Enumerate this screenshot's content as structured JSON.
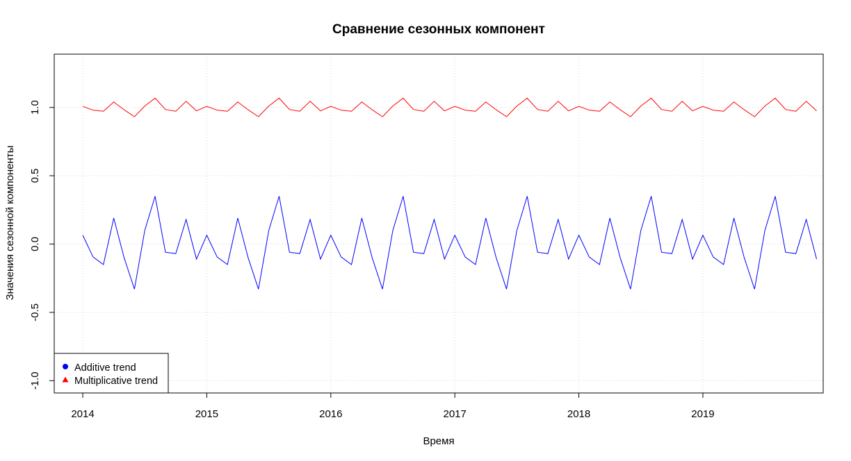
{
  "chart_data": {
    "type": "line",
    "title": "Сравнение сезонных компонент",
    "xlabel": "Время",
    "ylabel": "Значения сезонной компоненты",
    "xlim": [
      2013.77,
      2019.97
    ],
    "ylim": [
      -1.09,
      1.39
    ],
    "x_ticks": [
      2014,
      2015,
      2016,
      2017,
      2018,
      2019
    ],
    "y_ticks": [
      -1.0,
      -0.5,
      0.0,
      0.5,
      1.0
    ],
    "y_tick_labels": [
      "-1.0",
      "-0.5",
      "0.0",
      "0.5",
      "1.0"
    ],
    "grid": true,
    "legend_position": "bottom-left",
    "start": 2014,
    "frequency": 12,
    "series": [
      {
        "name": "Additive trend",
        "color": "#0000ff",
        "marker": "circle",
        "season_values": [
          0.065,
          -0.095,
          -0.15,
          0.19,
          -0.1,
          -0.33,
          0.1,
          0.35,
          -0.06,
          -0.07,
          0.18,
          -0.11
        ],
        "periods": 6
      },
      {
        "name": "Multiplicative trend",
        "color": "#ff0000",
        "marker": "triangle",
        "season_values": [
          1.008,
          0.98,
          0.972,
          1.04,
          0.983,
          0.932,
          1.01,
          1.068,
          0.985,
          0.972,
          1.045,
          0.975
        ],
        "periods": 6
      }
    ]
  }
}
